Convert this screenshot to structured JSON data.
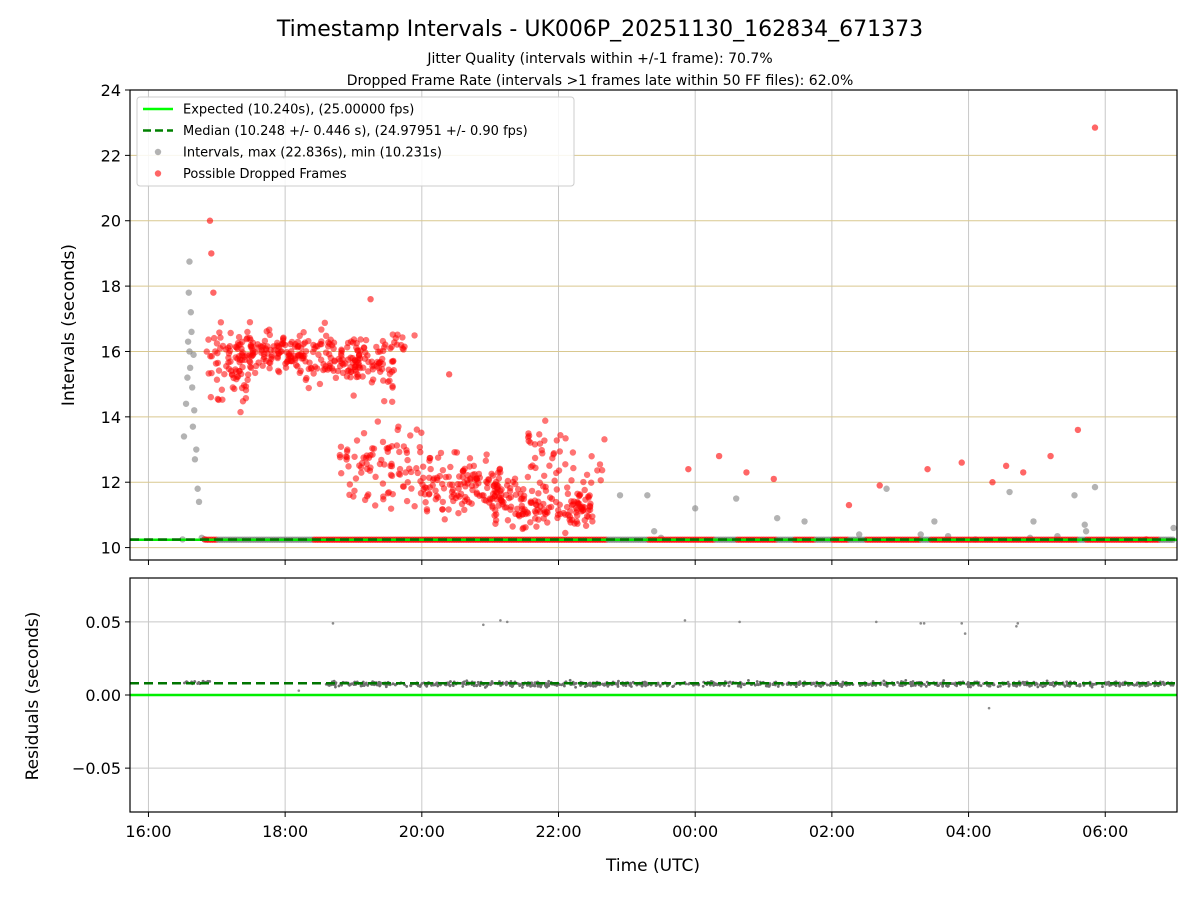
{
  "figure": {
    "title": "Timestamp Intervals - UK006P_20251130_162834_671373",
    "subtitle_1": "Jitter Quality (intervals within +/-1 frame): 70.7%",
    "subtitle_2": "Dropped Frame Rate (intervals >1 frames late within 50 FF files): 62.0%"
  },
  "chart_data": [
    {
      "type": "scatter",
      "ylabel": "Intervals (seconds)",
      "xlabel": "",
      "x_unit": "hours since 16:00 UTC on the x axis",
      "xlim": [
        -0.27,
        15.05
      ],
      "ylim": [
        9.62,
        24
      ],
      "grid": true,
      "y_ticks": [
        10,
        12,
        14,
        16,
        18,
        20,
        22,
        24
      ],
      "y_tick_labels": [
        "10",
        "12",
        "14",
        "16",
        "18",
        "20",
        "22",
        "24"
      ],
      "x_ticks": [
        0,
        2,
        4,
        6,
        8,
        10,
        12,
        14
      ],
      "legend_position": "top-left",
      "legend": [
        {
          "label": "Expected (10.240s), (25.00000 fps)",
          "style": "line",
          "color": "#00ff00"
        },
        {
          "label": "Median (10.248 +/- 0.446 s), (24.97951 +/- 0.90 fps)",
          "style": "dashed",
          "color": "#008000"
        },
        {
          "label": "Intervals, max (22.836s), min (10.231s)",
          "style": "marker",
          "color": "#808080"
        },
        {
          "label": "Possible Dropped Frames",
          "style": "marker",
          "color": "#ff0000"
        }
      ],
      "lines": {
        "expected": 10.24,
        "median": 10.248
      },
      "series": [
        {
          "name": "Intervals, max (22.836s), min (10.231s)",
          "color": "#808080",
          "points": [
            [
              0.5,
              10.25
            ],
            [
              0.52,
              13.4
            ],
            [
              0.55,
              14.4
            ],
            [
              0.57,
              15.2
            ],
            [
              0.58,
              16.3
            ],
            [
              0.59,
              17.8
            ],
            [
              0.6,
              18.75
            ],
            [
              0.6,
              16.0
            ],
            [
              0.61,
              15.5
            ],
            [
              0.62,
              17.2
            ],
            [
              0.63,
              16.6
            ],
            [
              0.64,
              14.9
            ],
            [
              0.65,
              13.7
            ],
            [
              0.66,
              15.9
            ],
            [
              0.67,
              14.2
            ],
            [
              0.68,
              12.7
            ],
            [
              0.7,
              13.0
            ],
            [
              0.72,
              11.8
            ],
            [
              0.74,
              11.4
            ],
            [
              0.78,
              10.3
            ],
            [
              0.82,
              10.25
            ],
            [
              6.9,
              11.6
            ],
            [
              7.3,
              11.6
            ],
            [
              7.4,
              10.5
            ],
            [
              7.5,
              10.3
            ],
            [
              8.0,
              11.2
            ],
            [
              8.6,
              11.5
            ],
            [
              9.2,
              10.9
            ],
            [
              9.6,
              10.8
            ],
            [
              10.4,
              10.4
            ],
            [
              10.8,
              11.8
            ],
            [
              11.3,
              10.4
            ],
            [
              11.5,
              10.8
            ],
            [
              11.7,
              10.35
            ],
            [
              12.1,
              10.25
            ],
            [
              12.6,
              11.7
            ],
            [
              12.9,
              10.3
            ],
            [
              12.95,
              10.8
            ],
            [
              13.3,
              10.35
            ],
            [
              13.55,
              11.6
            ],
            [
              13.7,
              10.7
            ],
            [
              13.72,
              10.5
            ],
            [
              13.85,
              11.85
            ],
            [
              15.0,
              10.6
            ]
          ]
        },
        {
          "name": "Possible Dropped Frames",
          "color": "#ff0000",
          "points": [
            [
              0.82,
              10.25
            ],
            [
              0.9,
              20.0
            ],
            [
              0.92,
              19.0
            ],
            [
              0.95,
              17.8
            ],
            [
              13.85,
              22.85
            ],
            [
              3.25,
              17.6
            ],
            [
              4.4,
              15.3
            ],
            [
              7.9,
              12.4
            ],
            [
              8.35,
              12.8
            ],
            [
              8.75,
              12.3
            ],
            [
              9.15,
              12.1
            ],
            [
              10.25,
              11.3
            ],
            [
              10.7,
              11.9
            ],
            [
              11.4,
              12.4
            ],
            [
              11.9,
              12.6
            ],
            [
              12.35,
              12.0
            ],
            [
              12.55,
              12.5
            ],
            [
              12.8,
              12.3
            ],
            [
              13.2,
              12.8
            ],
            [
              13.6,
              13.6
            ],
            [
              14.6,
              10.25
            ]
          ]
        }
      ]
    },
    {
      "type": "scatter",
      "ylabel": "Residuals (seconds)",
      "xlabel": "Time (UTC)",
      "xlim": [
        -0.27,
        15.05
      ],
      "ylim": [
        -0.08,
        0.08
      ],
      "grid": true,
      "y_ticks": [
        -0.05,
        0.0,
        0.05
      ],
      "y_tick_labels": [
        "−0.05",
        "0.00",
        "0.05"
      ],
      "x_ticks": [
        0,
        2,
        4,
        6,
        8,
        10,
        12,
        14
      ],
      "x_tick_labels": [
        "16:00",
        "18:00",
        "20:00",
        "22:00",
        "00:00",
        "02:00",
        "04:00",
        "06:00"
      ],
      "lines": {
        "expected": 0.0,
        "median": 0.008
      },
      "series": [
        {
          "name": "",
          "color": "#808080",
          "points": [
            [
              2.7,
              0.049
            ],
            [
              4.9,
              0.048
            ],
            [
              5.15,
              0.051
            ],
            [
              5.25,
              0.05
            ],
            [
              7.85,
              0.051
            ],
            [
              8.65,
              0.05
            ],
            [
              10.65,
              0.05
            ],
            [
              11.3,
              0.049
            ],
            [
              11.35,
              0.049
            ],
            [
              11.9,
              0.049
            ],
            [
              11.95,
              0.042
            ],
            [
              12.7,
              0.047
            ],
            [
              12.72,
              0.049
            ],
            [
              12.3,
              -0.009
            ],
            [
              2.2,
              0.003
            ]
          ]
        }
      ]
    }
  ]
}
